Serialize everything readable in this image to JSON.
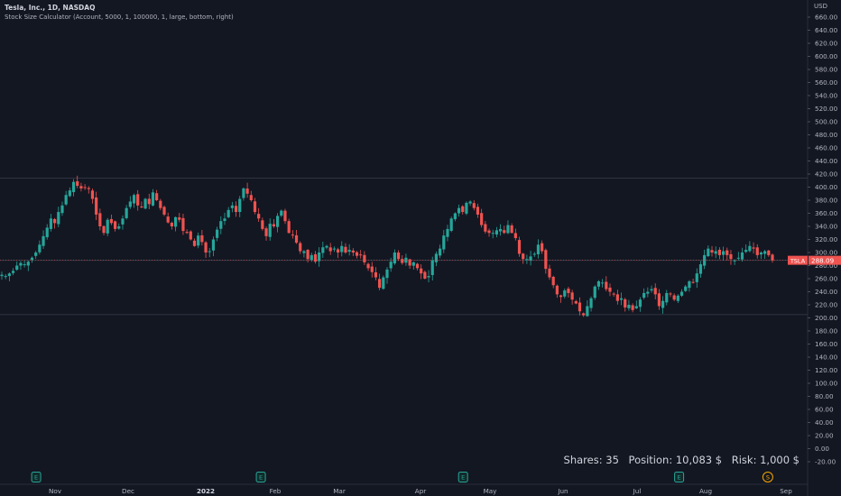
{
  "header": {
    "symbol_title": "Tesla, Inc., 1D, NASDAQ",
    "indicator": "Stock Size Calculator (Account, 5000, 1, 100000, 1, large, bottom, right)",
    "currency": "USD"
  },
  "price_tag": {
    "ticker": "TSLA",
    "price": "288.09"
  },
  "info_box": {
    "shares": "Shares: 35",
    "position": "Position: 10,083 $",
    "risk": "Risk: 1,000 $"
  },
  "colors": {
    "background": "#131722",
    "up": "#26a69a",
    "down": "#ef5350",
    "axis_text": "#b2b5be",
    "event_green": "#26a69a",
    "event_orange": "#f7a600"
  },
  "events": [
    {
      "label": "E",
      "x_date": "2021-10-20",
      "color": "green"
    },
    {
      "label": "E",
      "x_date": "2022-01-26",
      "color": "green"
    },
    {
      "label": "E",
      "x_date": "2022-04-20",
      "color": "green"
    },
    {
      "label": "E",
      "x_date": "2022-07-20",
      "color": "green"
    },
    {
      "label": "S",
      "x_date": "2022-08-25",
      "color": "orange"
    }
  ],
  "chart_data": {
    "type": "candlestick",
    "ylim": [
      -20,
      660
    ],
    "y_ticks": [
      "660.00",
      "640.00",
      "620.00",
      "600.00",
      "580.00",
      "560.00",
      "540.00",
      "520.00",
      "500.00",
      "480.00",
      "460.00",
      "440.00",
      "420.00",
      "400.00",
      "380.00",
      "360.00",
      "340.00",
      "320.00",
      "300.00",
      "280.00",
      "260.00",
      "240.00",
      "220.00",
      "200.00",
      "180.00",
      "160.00",
      "140.00",
      "120.00",
      "100.00",
      "80.00",
      "60.00",
      "40.00",
      "20.00",
      "0.00",
      "-20.00"
    ],
    "x_ticks": [
      {
        "label": "Nov",
        "date": "2021-11-01"
      },
      {
        "label": "Dec",
        "date": "2021-12-01"
      },
      {
        "label": "2022",
        "date": "2022-01-03"
      },
      {
        "label": "Feb",
        "date": "2022-02-01"
      },
      {
        "label": "Mar",
        "date": "2022-03-01"
      },
      {
        "label": "Apr",
        "date": "2022-04-01"
      },
      {
        "label": "May",
        "date": "2022-05-02"
      },
      {
        "label": "Jun",
        "date": "2022-06-01"
      },
      {
        "label": "Jul",
        "date": "2022-07-01"
      },
      {
        "label": "Aug",
        "date": "2022-08-01"
      },
      {
        "label": "Sep",
        "date": "2022-09-01"
      }
    ],
    "hlines": [
      414,
      288,
      205
    ],
    "last_price": 288.09,
    "closes": [
      [
        266,
        264,
        268,
        272,
        280,
        284,
        282,
        286,
        292,
        300,
        312,
        325,
        338,
        352,
        345,
        362,
        372,
        388,
        395,
        408,
        402,
        398,
        400,
        397,
        382,
        358,
        340,
        330,
        350,
        345,
        336,
        340,
        352,
        368,
        378,
        388,
        372,
        370,
        382,
        374,
        392,
        380,
        368,
        358,
        346,
        340,
        354,
        350,
        333,
        330,
        320,
        310,
        326,
        316,
        300,
        302,
        320,
        335,
        348,
        352,
        365,
        372,
        362,
        382,
        398,
        390,
        380,
        362,
        352,
        336,
        325,
        344,
        340,
        356,
        364,
        348,
        330,
        326,
        315,
        302,
        302,
        290,
        296,
        286,
        300,
        308,
        310,
        302,
        306,
        300,
        310,
        300,
        304,
        300,
        295,
        296,
        285,
        276,
        270,
        262,
        246,
        262,
        274,
        286,
        300,
        290,
        284,
        292,
        280,
        285,
        276,
        268,
        260,
        264,
        288,
        298,
        306,
        326,
        336,
        352,
        360,
        368,
        362,
        376,
        378,
        368,
        358,
        342,
        332,
        330,
        330,
        334,
        336,
        330,
        342,
        330,
        322,
        298,
        290,
        290,
        294,
        298,
        312,
        302,
        275,
        262,
        250,
        236,
        232,
        242,
        238,
        228,
        222,
        210,
        204,
        218,
        230,
        248,
        256,
        254,
        244,
        240,
        236,
        226,
        230,
        216,
        220,
        212,
        218,
        228,
        238,
        240,
        244,
        236,
        218,
        226,
        238,
        236,
        228,
        234,
        240,
        248,
        256,
        254,
        268,
        282,
        296,
        306,
        300,
        302,
        296,
        302,
        296,
        290,
        288,
        292,
        300,
        304,
        310,
        306,
        296,
        300,
        302,
        296,
        288
      ]
    ]
  }
}
